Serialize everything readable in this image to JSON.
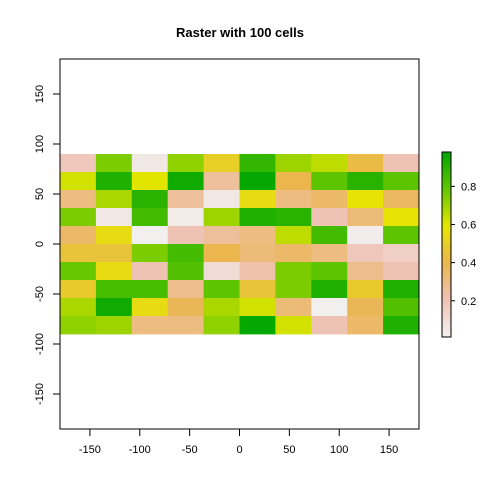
{
  "chart_data": {
    "type": "heatmap",
    "title": "Raster with 100 cells",
    "xlabel": "",
    "ylabel": "",
    "xlim": [
      -180,
      180
    ],
    "ylim": [
      -185,
      185
    ],
    "x_ticks": [
      -150,
      -100,
      -50,
      0,
      50,
      100,
      150
    ],
    "y_ticks": [
      -150,
      -100,
      -50,
      0,
      50,
      100,
      150
    ],
    "raster_extent": {
      "xmin": -180,
      "xmax": 180,
      "ymin": -90,
      "ymax": 90
    },
    "ncol": 10,
    "nrow": 10,
    "values": [
      [
        0.18,
        0.75,
        0.05,
        0.72,
        0.5,
        0.88,
        0.7,
        0.65,
        0.42,
        0.2
      ],
      [
        0.62,
        0.92,
        0.6,
        0.95,
        0.25,
        0.97,
        0.4,
        0.8,
        0.9,
        0.8
      ],
      [
        0.3,
        0.68,
        0.9,
        0.25,
        0.05,
        0.55,
        0.3,
        0.35,
        0.58,
        0.36
      ],
      [
        0.75,
        0.05,
        0.85,
        0.04,
        0.7,
        0.92,
        0.9,
        0.2,
        0.32,
        0.58
      ],
      [
        0.35,
        0.55,
        0.02,
        0.2,
        0.25,
        0.3,
        0.65,
        0.85,
        0.03,
        0.8
      ],
      [
        0.45,
        0.45,
        0.75,
        0.85,
        0.4,
        0.32,
        0.35,
        0.3,
        0.18,
        0.15
      ],
      [
        0.78,
        0.55,
        0.2,
        0.82,
        0.1,
        0.22,
        0.75,
        0.8,
        0.28,
        0.2
      ],
      [
        0.48,
        0.84,
        0.84,
        0.28,
        0.8,
        0.45,
        0.75,
        0.92,
        0.48,
        0.92
      ],
      [
        0.68,
        0.95,
        0.55,
        0.38,
        0.68,
        0.62,
        0.32,
        0.02,
        0.38,
        0.82
      ],
      [
        0.72,
        0.7,
        0.3,
        0.3,
        0.72,
        0.97,
        0.62,
        0.2,
        0.35,
        0.92
      ]
    ],
    "legend": {
      "type": "continuous",
      "placement": "right",
      "ticks": [
        0.2,
        0.4,
        0.6,
        0.8
      ],
      "range": [
        0.01,
        0.98
      ]
    },
    "grid": false
  },
  "colors": {
    "palette_terrain": [
      "#f2f2f2",
      "#efc2b3",
      "#eab64e",
      "#e6e600",
      "#63c600",
      "#00a600"
    ],
    "axis": "#000000",
    "background": "#ffffff"
  }
}
